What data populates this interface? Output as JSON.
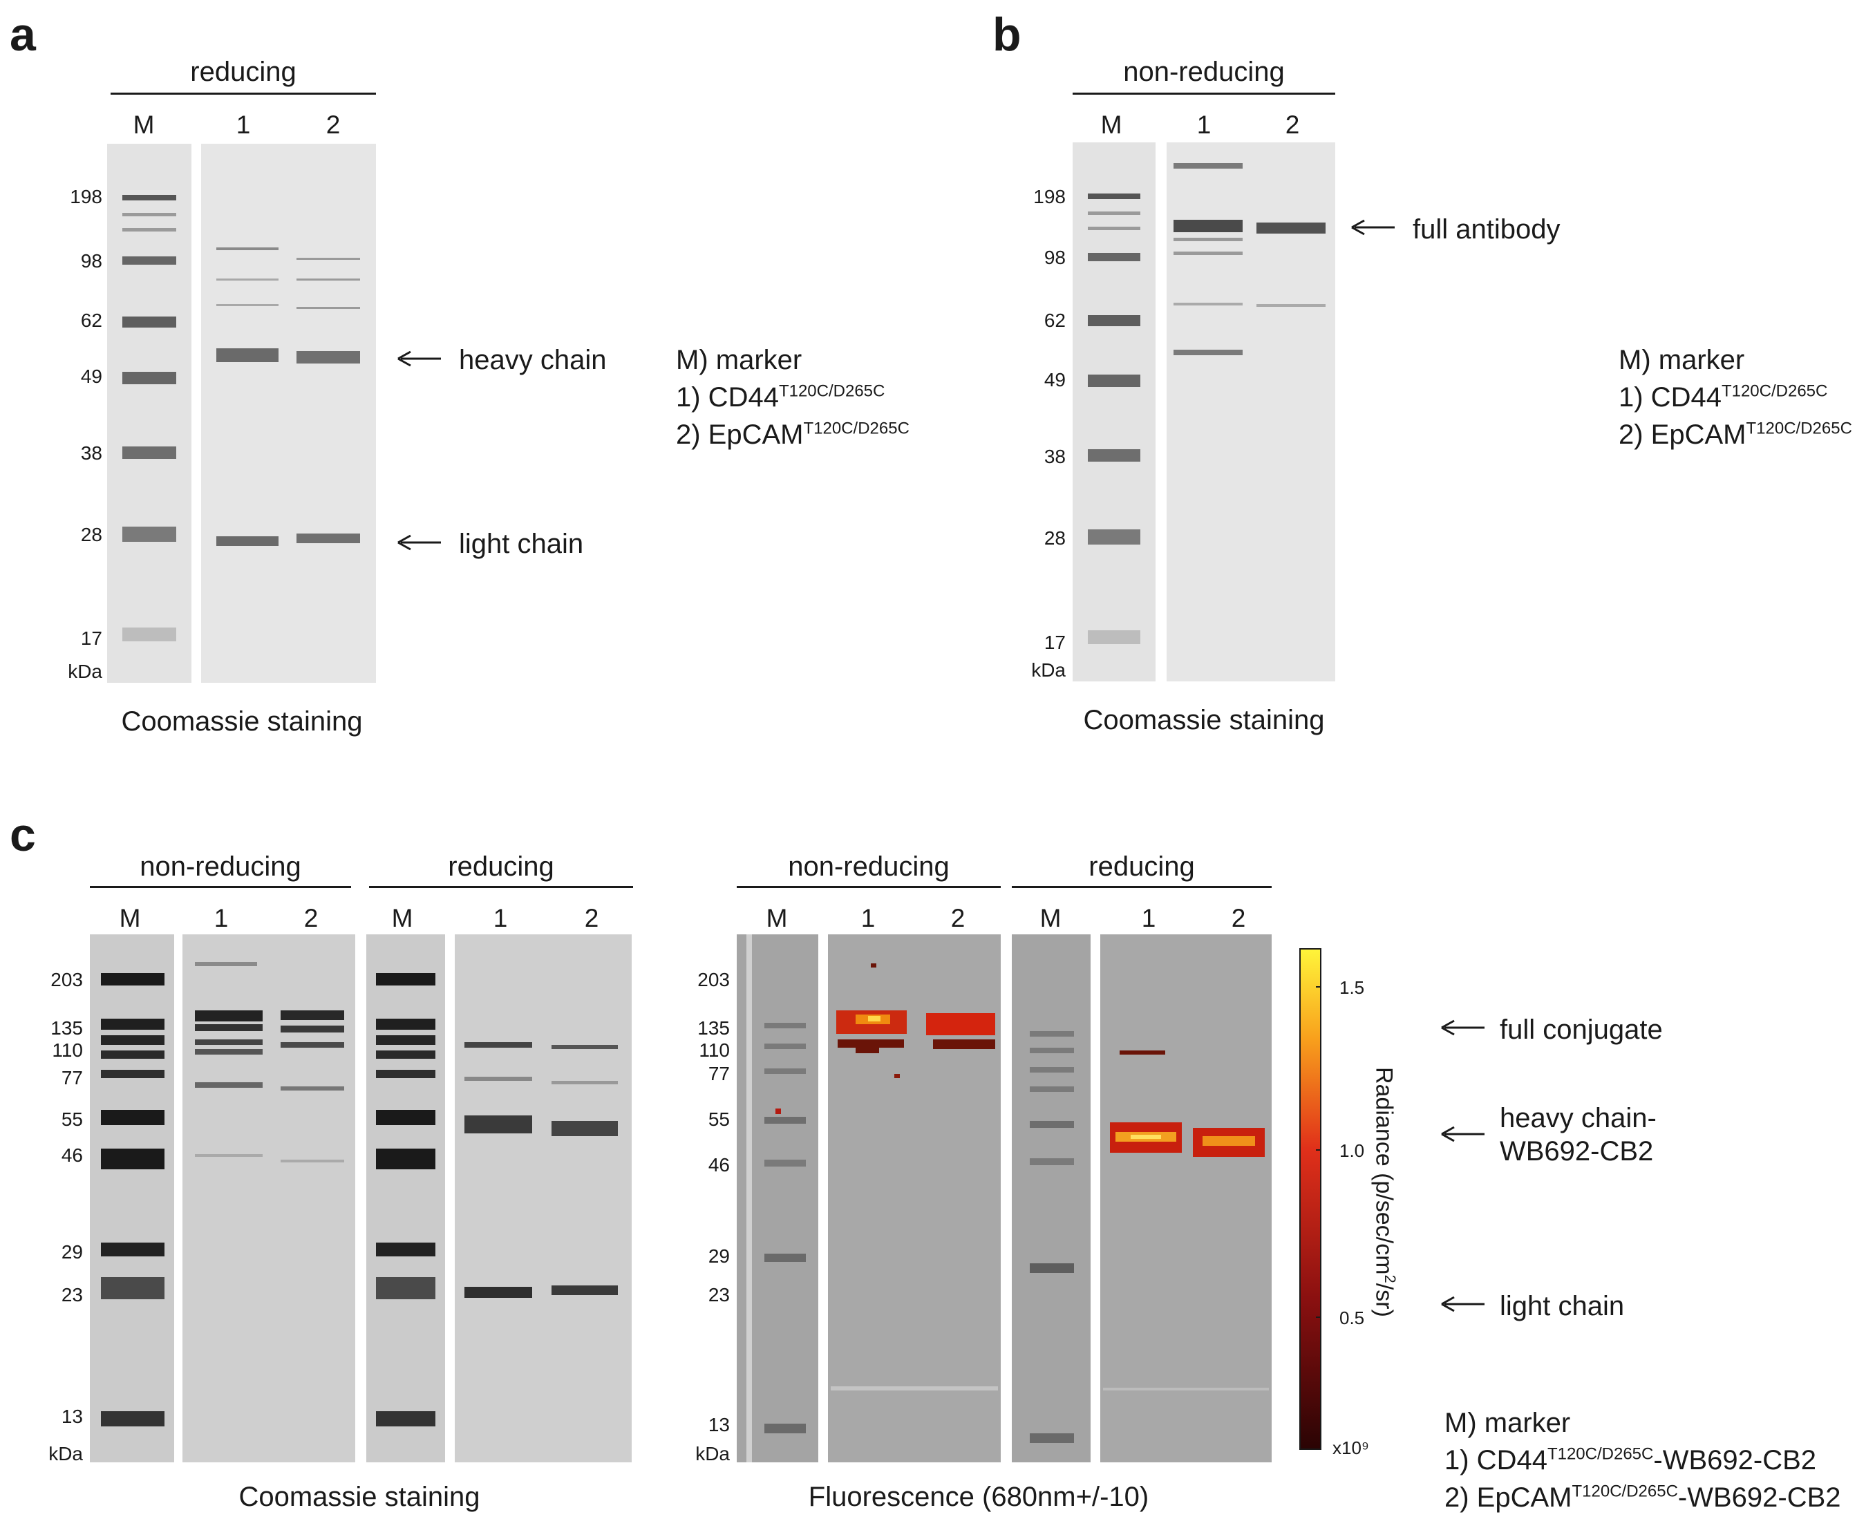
{
  "panels": [
    {
      "label": "a",
      "condition": "reducing",
      "lanes": [
        "M",
        "1",
        "2"
      ],
      "markers": [
        "198",
        "98",
        "62",
        "49",
        "38",
        "28",
        "17"
      ],
      "unit": "kDa",
      "caption": "Coomassie staining",
      "annotations": [
        "heavy chain",
        "light chain"
      ],
      "legend": {
        "m": "M) marker",
        "l1": "1) CD44",
        "l1_sup": "T120C/D265C",
        "l2": "2) EpCAM",
        "l2_sup": "T120C/D265C"
      }
    },
    {
      "label": "b",
      "condition": "non-reducing",
      "lanes": [
        "M",
        "1",
        "2"
      ],
      "markers": [
        "198",
        "98",
        "62",
        "49",
        "38",
        "28",
        "17"
      ],
      "unit": "kDa",
      "caption": "Coomassie staining",
      "annotations": [
        "full antibody"
      ],
      "legend": {
        "m": "M) marker",
        "l1": "1) CD44",
        "l1_sup": "T120C/D265C",
        "l2": "2) EpCAM",
        "l2_sup": "T120C/D265C"
      }
    },
    {
      "label": "c",
      "conditions": [
        "non-reducing",
        "reducing",
        "non-reducing",
        "reducing"
      ],
      "lanes": [
        "M",
        "1",
        "2"
      ],
      "markers": [
        "203",
        "135",
        "110",
        "77",
        "55",
        "46",
        "29",
        "23",
        "13"
      ],
      "unit": "kDa",
      "captions": [
        "Coomassie staining",
        "Fluorescence (680nm+/-10)"
      ],
      "annotations": [
        "full conjugate",
        "heavy chain-",
        "WB692-CB2",
        "light chain"
      ],
      "colorbar": {
        "ticks": [
          "1.5",
          "1.0",
          "0.5"
        ],
        "multiplier": "x10⁹",
        "title_pre": "Radiance (p/sec/cm",
        "title_sup": "2",
        "title_post": "/sr)"
      },
      "legend": {
        "m": "M) marker",
        "l1": "1) CD44",
        "l1_sup": "T120C/D265C",
        "l1_post": "-WB692-CB2",
        "l2": "2) EpCAM",
        "l2_sup": "T120C/D265C",
        "l2_post": "-WB692-CB2"
      }
    }
  ]
}
